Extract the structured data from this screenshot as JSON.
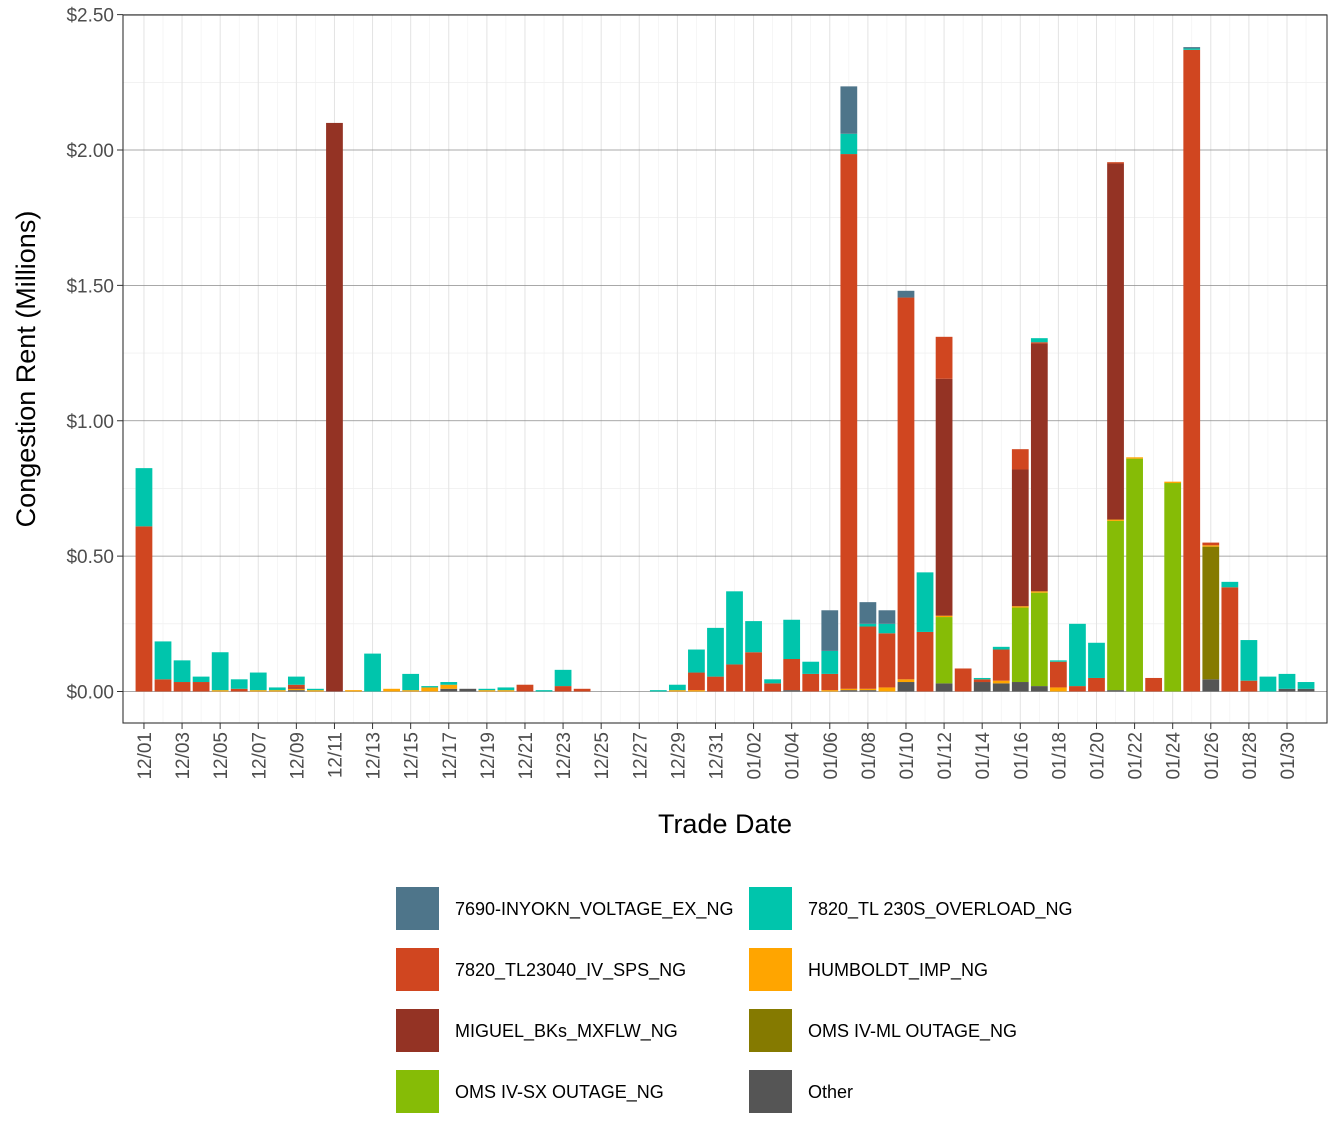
{
  "chart_data": {
    "type": "bar",
    "stacked": true,
    "xlabel": "Trade Date",
    "ylabel": "Congestion Rent (Millions)",
    "ylim": [
      -0.12,
      2.5
    ],
    "yticks": [
      0,
      0.5,
      1.0,
      1.5,
      2.0,
      2.5
    ],
    "ytick_labels": [
      "$0.00",
      "$0.50",
      "$1.00",
      "$1.50",
      "$2.00",
      "$2.50"
    ],
    "grid": true,
    "legend_position": "bottom",
    "categories": [
      "12/01",
      "12/02",
      "12/03",
      "12/04",
      "12/05",
      "12/06",
      "12/07",
      "12/08",
      "12/09",
      "12/10",
      "12/11",
      "12/12",
      "12/13",
      "12/14",
      "12/15",
      "12/16",
      "12/17",
      "12/18",
      "12/19",
      "12/20",
      "12/21",
      "12/22",
      "12/23",
      "12/24",
      "12/25",
      "12/26",
      "12/27",
      "12/28",
      "12/29",
      "12/30",
      "12/31",
      "01/01",
      "01/02",
      "01/03",
      "01/04",
      "01/05",
      "01/06",
      "01/07",
      "01/08",
      "01/09",
      "01/10",
      "01/11",
      "01/12",
      "01/13",
      "01/14",
      "01/15",
      "01/16",
      "01/17",
      "01/18",
      "01/19",
      "01/20",
      "01/21",
      "01/22",
      "01/23",
      "01/24",
      "01/25",
      "01/26",
      "01/27",
      "01/28",
      "01/29",
      "01/30",
      "01/31"
    ],
    "xtick_labels": [
      "12/01",
      "12/03",
      "12/05",
      "12/07",
      "12/09",
      "12/11",
      "12/13",
      "12/15",
      "12/17",
      "12/19",
      "12/21",
      "12/23",
      "12/25",
      "12/27",
      "12/29",
      "12/31",
      "01/02",
      "01/04",
      "01/06",
      "01/08",
      "01/10",
      "01/12",
      "01/14",
      "01/16",
      "01/18",
      "01/20",
      "01/22",
      "01/24",
      "01/26",
      "01/28",
      "01/30"
    ],
    "series": [
      {
        "name": "Other",
        "color": "#555555",
        "values": [
          0,
          0,
          0,
          0,
          0,
          0,
          0,
          0,
          0.005,
          0,
          0,
          0,
          0,
          0,
          0,
          0,
          0.01,
          0.01,
          0,
          0,
          0,
          0,
          0,
          0,
          0,
          0,
          0,
          0,
          0,
          0,
          0,
          0,
          0,
          0,
          0.005,
          0,
          0,
          0.005,
          0.005,
          0,
          0.035,
          0,
          0.03,
          0,
          0.035,
          0.03,
          0.035,
          0.02,
          0,
          0,
          0,
          0.005,
          0,
          0,
          0,
          0,
          0.045,
          0,
          0,
          0,
          0.01,
          0.01
        ]
      },
      {
        "name": "OMS IV-ML OUTAGE_NG",
        "color": "#857A00",
        "values": [
          0,
          0,
          0,
          0,
          0,
          0,
          0,
          0,
          0,
          0,
          0,
          0,
          0,
          0,
          0,
          0,
          0,
          0,
          0,
          0,
          0,
          0,
          0,
          0,
          0,
          0,
          0,
          0,
          0,
          0,
          0,
          0,
          0,
          0,
          0,
          0,
          0,
          0,
          0,
          0,
          0,
          0,
          0,
          0,
          0,
          0,
          0,
          0,
          0,
          0,
          0,
          0,
          0,
          0,
          0,
          0,
          0.49,
          0,
          0,
          0,
          0,
          0
        ]
      },
      {
        "name": "OMS IV-SX OUTAGE_NG",
        "color": "#86BC06",
        "values": [
          0,
          0,
          0,
          0,
          0,
          0,
          0,
          0,
          0,
          0,
          0,
          0,
          0,
          0,
          0,
          0,
          0,
          0,
          0,
          0,
          0,
          0,
          0,
          0,
          0,
          0,
          0,
          0,
          0,
          0,
          0,
          0,
          0,
          0,
          0,
          0,
          0,
          0,
          0,
          0,
          0,
          0,
          0.245,
          0,
          0,
          0,
          0.275,
          0.345,
          0,
          0,
          0,
          0.625,
          0.86,
          0,
          0.77,
          0,
          0,
          0,
          0,
          0,
          0,
          0
        ]
      },
      {
        "name": "HUMBOLDT_IMP_NG",
        "color": "#FFA500",
        "values": [
          0,
          0,
          0,
          0,
          0.005,
          0,
          0.005,
          0.005,
          0.005,
          0.005,
          0,
          0.005,
          0,
          0.01,
          0.005,
          0.015,
          0.015,
          0,
          0.005,
          0.005,
          0,
          0,
          0,
          0,
          0,
          0,
          0,
          0,
          0.005,
          0.005,
          0,
          0,
          0,
          0,
          0,
          0,
          0.005,
          0.005,
          0.005,
          0.015,
          0.01,
          0,
          0.005,
          0,
          0,
          0.01,
          0.005,
          0.005,
          0.015,
          0,
          0,
          0.005,
          0.005,
          0,
          0.005,
          0,
          0.005,
          0,
          0,
          0,
          0,
          0
        ]
      },
      {
        "name": "MIGUEL_BKs_MXFLW_NG",
        "color": "#943324",
        "values": [
          0,
          0,
          0,
          0,
          0,
          0,
          0,
          0,
          0.005,
          0,
          2.1,
          0,
          0,
          0,
          0,
          0,
          0,
          0,
          0,
          0,
          0,
          0,
          0,
          0,
          0,
          0,
          0,
          0,
          0,
          0,
          0,
          0,
          0,
          0,
          0,
          0,
          0,
          0,
          0,
          0,
          0,
          0,
          0.875,
          0,
          0,
          0,
          0.505,
          0.915,
          0,
          0,
          0,
          1.315,
          0,
          0,
          0,
          0,
          0,
          0,
          0,
          0,
          0,
          0
        ]
      },
      {
        "name": "7820_TL23040_IV_SPS_NG",
        "color": "#D04620",
        "values": [
          0.61,
          0.045,
          0.035,
          0.035,
          0,
          0.01,
          0,
          0,
          0.01,
          0,
          0,
          0,
          0,
          0,
          0,
          0,
          0,
          0,
          0,
          0,
          0.025,
          0,
          0.02,
          0.01,
          0,
          0,
          0,
          0,
          0,
          0.065,
          0.055,
          0.1,
          0.145,
          0.03,
          0.115,
          0.065,
          0.06,
          1.975,
          0.23,
          0.2,
          1.41,
          0.22,
          0.155,
          0.085,
          0.01,
          0.115,
          0.075,
          0.005,
          0.095,
          0.02,
          0.05,
          0.005,
          0,
          0.05,
          0,
          2.37,
          0.01,
          0.385,
          0.04,
          0,
          0,
          0
        ]
      },
      {
        "name": "7820_TL 230S_OVERLOAD_NG",
        "color": "#00C5AC",
        "values": [
          0.215,
          0.14,
          0.08,
          0.02,
          0.14,
          0.035,
          0.065,
          0.01,
          0.03,
          0.005,
          0,
          0,
          0.14,
          0,
          0.06,
          0.005,
          0.01,
          0,
          0.005,
          0.01,
          0,
          0.005,
          0.06,
          0,
          0,
          0,
          0,
          0.005,
          0.02,
          0.085,
          0.18,
          0.27,
          0.115,
          0.015,
          0.145,
          0.045,
          0.085,
          0.075,
          0.01,
          0.035,
          0,
          0.22,
          0,
          0,
          0.005,
          0.01,
          0,
          0.015,
          0.005,
          0.23,
          0.13,
          0,
          0,
          0,
          0,
          0.005,
          0,
          0.02,
          0.15,
          0.055,
          0.055,
          0.025
        ]
      },
      {
        "name": "7690-INYOKN_VOLTAGE_EX_NG",
        "color": "#4E758A",
        "values": [
          0,
          0,
          0,
          0,
          0,
          0,
          0,
          0,
          0,
          0,
          0,
          0,
          0,
          0,
          0,
          0,
          0,
          0,
          0,
          0,
          0,
          0,
          0,
          0,
          0,
          0,
          0,
          0,
          0,
          0,
          0,
          0,
          0,
          0,
          0,
          0,
          0.15,
          0.175,
          0.08,
          0.05,
          0.025,
          0,
          0,
          0,
          0,
          0,
          0,
          0,
          0,
          0,
          0,
          0,
          0,
          0,
          0,
          0.005,
          0,
          0,
          0,
          0,
          0,
          0
        ]
      }
    ],
    "legend_order": [
      "7690-INYOKN_VOLTAGE_EX_NG",
      "7820_TL 230S_OVERLOAD_NG",
      "7820_TL23040_IV_SPS_NG",
      "HUMBOLDT_IMP_NG",
      "MIGUEL_BKs_MXFLW_NG",
      "OMS IV-ML OUTAGE_NG",
      "OMS IV-SX OUTAGE_NG",
      "Other"
    ]
  }
}
